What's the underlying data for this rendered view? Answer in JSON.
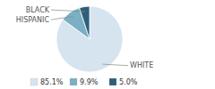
{
  "chart_data": {
    "type": "pie",
    "categories": [
      "WHITE",
      "HISPANIC",
      "BLACK"
    ],
    "values": [
      85.1,
      9.9,
      5.0
    ],
    "value_labels": [
      "85.1%",
      "9.9%",
      "5.0%"
    ],
    "colors": [
      "#d6e4f0",
      "#7aafc4",
      "#2e5f7a"
    ],
    "legend": "bottom"
  }
}
